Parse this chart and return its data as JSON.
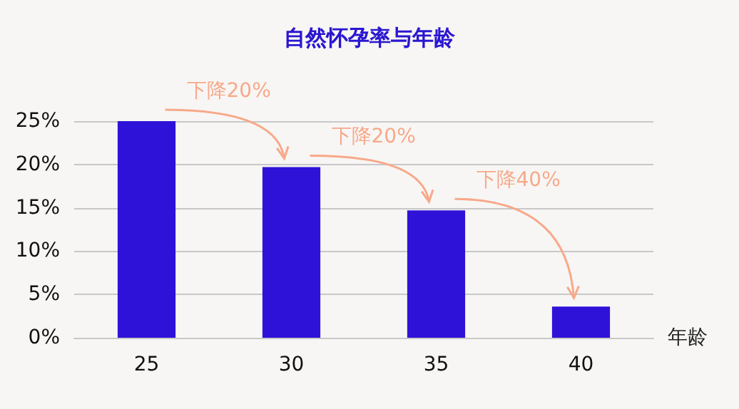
{
  "chart_data": {
    "type": "bar",
    "title": "自然怀孕率与年龄",
    "xlabel": "年龄",
    "categories": [
      "25",
      "30",
      "35",
      "40"
    ],
    "values": [
      25,
      19.7,
      14.7,
      3.6
    ],
    "color": "#2e12d8",
    "ylim": [
      0,
      25
    ],
    "yticks": [
      {
        "value": 0,
        "label": "0%"
      },
      {
        "value": 5,
        "label": "5%"
      },
      {
        "value": 10,
        "label": "10%"
      },
      {
        "value": 15,
        "label": "15%"
      },
      {
        "value": 20,
        "label": "20%"
      },
      {
        "value": 25,
        "label": "25%"
      }
    ],
    "grid": "y",
    "annotations": [
      "下降20%",
      "下降20%",
      "下降40%"
    ]
  }
}
